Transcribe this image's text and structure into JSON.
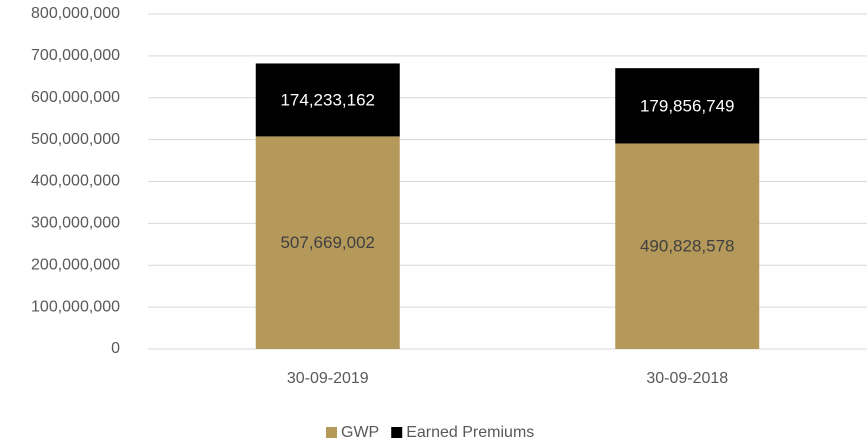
{
  "chart_data": {
    "type": "stacked_bar",
    "categories": [
      "30-09-2019",
      "30-09-2018"
    ],
    "series": [
      {
        "name": "GWP",
        "color": "#b5995a",
        "values": [
          507669002,
          490828578
        ],
        "value_labels": [
          "507,669,002",
          "490,828,578"
        ]
      },
      {
        "name": "Earned Premiums",
        "color": "#000000",
        "values": [
          174233162,
          179856749
        ],
        "value_labels": [
          "174,233,162",
          "179,856,749"
        ]
      }
    ],
    "ylim": [
      0,
      800000000
    ],
    "yticks": [
      0,
      {
        "value": 100000000,
        "label": "100,000,000"
      },
      {
        "value": 200000000,
        "label": "200,000,000"
      },
      {
        "value": 300000000,
        "label": "300,000,000"
      },
      {
        "value": 400000000,
        "label": "400,000,000"
      },
      {
        "value": 500000000,
        "label": "500,000,000"
      },
      {
        "value": 600000000,
        "label": "600,000,000"
      },
      {
        "value": 700000000,
        "label": "700,000,000"
      },
      {
        "value": 800000000,
        "label": "800,000,000"
      }
    ],
    "grid": true,
    "legend": "bottom"
  }
}
